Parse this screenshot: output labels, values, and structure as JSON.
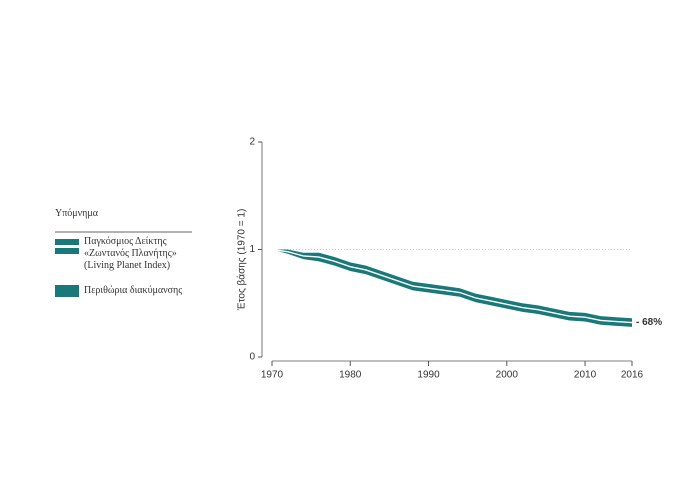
{
  "chart_data": {
    "type": "line",
    "ylabel": "Έτος βάσης (1970 = 1)",
    "legend_title": "Υπόμνημα",
    "annotation": "- 68%",
    "x": [
      1970,
      1972,
      1974,
      1976,
      1978,
      1980,
      1982,
      1984,
      1986,
      1988,
      1990,
      1992,
      1994,
      1996,
      1998,
      2000,
      2002,
      2004,
      2006,
      2008,
      2010,
      2012,
      2014,
      2016
    ],
    "series": [
      {
        "name": "Παγκόσμιος Δείκτης «Ζωντανός Πλανήτης» (Living Planet Index)",
        "color": "#ffffff",
        "values": [
          1.0,
          0.98,
          0.94,
          0.93,
          0.89,
          0.84,
          0.81,
          0.76,
          0.71,
          0.66,
          0.64,
          0.62,
          0.6,
          0.55,
          0.52,
          0.49,
          0.46,
          0.44,
          0.41,
          0.38,
          0.37,
          0.34,
          0.33,
          0.32
        ]
      }
    ],
    "band": {
      "name": "Περιθώρια διακύμανσης",
      "color": "#19797a",
      "lower": [
        1.0,
        0.96,
        0.91,
        0.89,
        0.85,
        0.8,
        0.77,
        0.72,
        0.67,
        0.62,
        0.6,
        0.58,
        0.56,
        0.51,
        0.48,
        0.45,
        0.42,
        0.4,
        0.37,
        0.34,
        0.33,
        0.3,
        0.29,
        0.28
      ],
      "upper": [
        1.0,
        1.0,
        0.97,
        0.97,
        0.93,
        0.88,
        0.85,
        0.8,
        0.75,
        0.7,
        0.68,
        0.66,
        0.64,
        0.59,
        0.56,
        0.53,
        0.5,
        0.48,
        0.45,
        0.42,
        0.41,
        0.38,
        0.37,
        0.36
      ]
    },
    "xlim": [
      1970,
      2016
    ],
    "ylim": [
      0,
      2
    ],
    "xticks": [
      1970,
      1980,
      1990,
      2000,
      2010,
      2016
    ],
    "yticks": [
      0,
      1,
      2
    ],
    "reference_line": 1
  }
}
